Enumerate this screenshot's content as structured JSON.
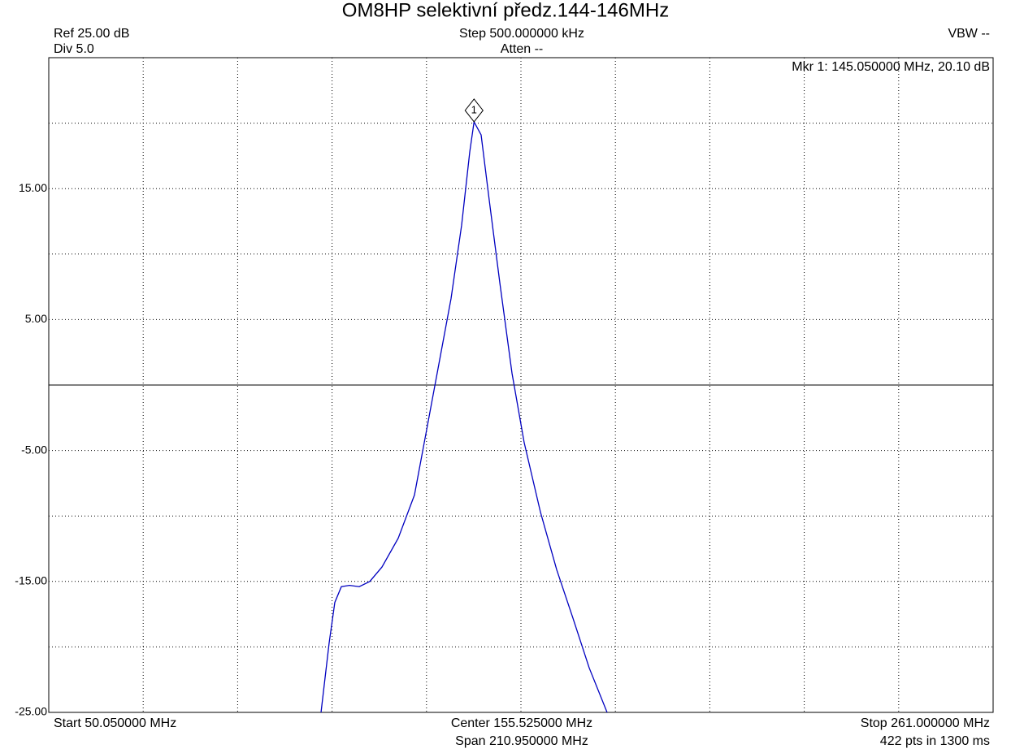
{
  "chart_data": {
    "type": "line",
    "title": "OM8HP selektivní předz.144-146MHz",
    "header": {
      "ref": "Ref 25.00 dB",
      "div": "Div 5.0",
      "step": "Step 500.000000 kHz",
      "atten": "Atten --",
      "vbw": "VBW --"
    },
    "footer": {
      "start": "Start 50.050000 MHz",
      "center": "Center 155.525000 MHz",
      "span": "Span 210.950000 MHz",
      "stop": "Stop 261.000000 MHz",
      "points": "422 pts in 1300 ms"
    },
    "xlim": [
      50.05,
      261
    ],
    "ylim": [
      -25,
      25
    ],
    "yticks": [
      {
        "value": 15,
        "label": "15.00"
      },
      {
        "value": 5,
        "label": "5.00"
      },
      {
        "value": -5,
        "label": "-5.00"
      },
      {
        "value": -15,
        "label": "-15.00"
      },
      {
        "value": -25,
        "label": "-25.00"
      }
    ],
    "ygrid": [
      20,
      15,
      10,
      5,
      -5,
      -10,
      -15,
      -20
    ],
    "ref_line": 0,
    "xgrid": [
      71.145,
      92.24,
      113.335,
      134.43,
      155.525,
      176.62,
      197.715,
      218.81,
      239.905
    ],
    "grid": true,
    "series": [
      {
        "color": "#0000c0",
        "x": [
          110.87,
          112.68,
          113.95,
          115.41,
          117.22,
          119.4,
          121.76,
          124.48,
          128.11,
          131.74,
          134.47,
          137.19,
          139.91,
          142.27,
          144.09,
          145.05,
          146.63,
          148.45,
          150.81,
          153.53,
          156.25,
          159.88,
          163.51,
          167.14,
          170.77,
          174.77
        ],
        "values": [
          -25,
          -19.7,
          -16.6,
          -15.4,
          -15.3,
          -15.4,
          -15.0,
          -13.9,
          -11.7,
          -8.4,
          -3.4,
          1.6,
          6.6,
          12.2,
          17.8,
          20.1,
          19.1,
          14.1,
          7.8,
          0.9,
          -4.4,
          -9.7,
          -14.1,
          -17.8,
          -21.6,
          -25
        ]
      }
    ],
    "marker": {
      "label": "1",
      "x": 145.05,
      "y": 20.1,
      "readout": "Mkr 1: 145.050000 MHz, 20.10 dB"
    }
  }
}
